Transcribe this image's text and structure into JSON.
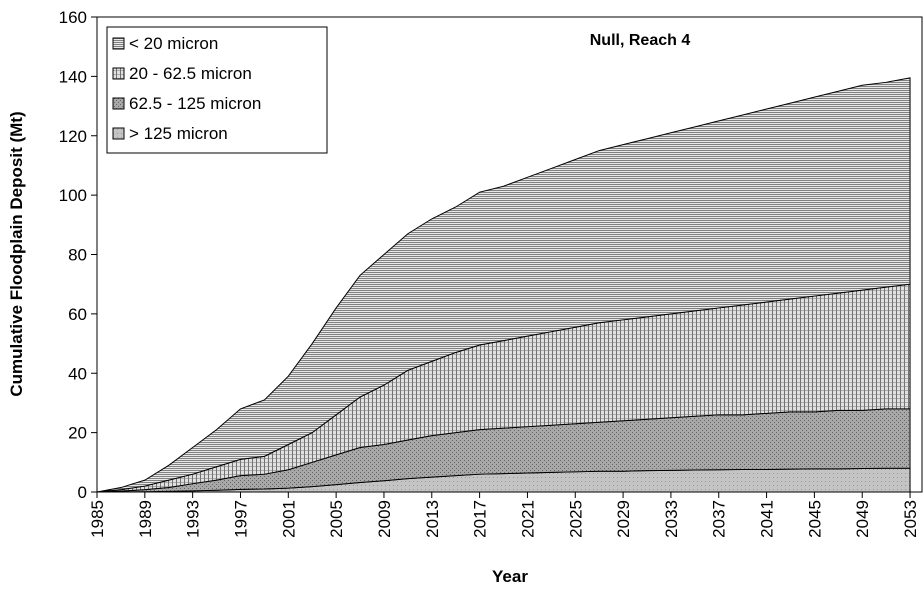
{
  "chart_data": {
    "type": "stacked_area",
    "title": "Null, Reach 4",
    "x_label": "Year",
    "y_label": "Cumulative Floodplain Deposit (Mt)",
    "x": [
      1985,
      1987,
      1989,
      1991,
      1993,
      1995,
      1997,
      1999,
      2001,
      2003,
      2005,
      2007,
      2009,
      2011,
      2013,
      2015,
      2017,
      2019,
      2021,
      2023,
      2025,
      2027,
      2029,
      2031,
      2033,
      2035,
      2037,
      2039,
      2041,
      2043,
      2045,
      2047,
      2049,
      2051,
      2053
    ],
    "series": [
      {
        "name": "< 20 micron",
        "color": "#e8e8e8",
        "values": [
          0,
          0.7,
          2,
          5,
          9,
          12.5,
          17,
          19,
          23,
          30,
          36,
          41,
          44,
          46,
          48,
          49,
          51.5,
          52,
          53.5,
          55,
          56.5,
          58,
          59,
          60,
          61,
          62,
          63,
          64,
          65,
          66,
          67,
          68,
          69,
          69,
          69.5
        ]
      },
      {
        "name": "20 - 62.5 micron",
        "color": "#e0e0e0",
        "values": [
          0,
          0.5,
          1.2,
          2.5,
          3.2,
          4.5,
          5.5,
          6,
          8.5,
          10,
          13.5,
          17,
          20,
          23.5,
          25,
          27,
          28.5,
          29.5,
          30.5,
          31.5,
          32.5,
          33.5,
          34,
          34.5,
          35,
          35.5,
          36,
          37,
          37.5,
          38,
          39,
          39.5,
          40.5,
          41,
          42
        ]
      },
      {
        "name": "62.5 - 125 micron",
        "color": "#a8a8a8",
        "values": [
          0,
          0.3,
          0.7,
          1.3,
          2.4,
          3.4,
          4.6,
          5,
          6.2,
          8.2,
          10,
          11.8,
          12.2,
          13,
          14,
          14.5,
          15,
          15.3,
          15.6,
          15.9,
          16.2,
          16.5,
          17,
          17.3,
          17.7,
          18.1,
          18.5,
          18.4,
          18.9,
          19.3,
          19.2,
          19.7,
          19.6,
          20,
          20
        ]
      },
      {
        "name": "> 125 micron",
        "color": "#c4c4c4",
        "values": [
          0,
          0,
          0.1,
          0.2,
          0.4,
          0.6,
          0.9,
          1,
          1.3,
          1.8,
          2.5,
          3.2,
          3.8,
          4.5,
          5,
          5.5,
          6,
          6.2,
          6.4,
          6.6,
          6.8,
          7,
          7,
          7.2,
          7.3,
          7.4,
          7.5,
          7.6,
          7.6,
          7.7,
          7.8,
          7.8,
          7.9,
          8,
          8
        ]
      }
    ],
    "xlim": [
      1985,
      2054
    ],
    "xticks": [
      1985,
      1989,
      1993,
      1997,
      2001,
      2005,
      2009,
      2013,
      2017,
      2021,
      2025,
      2029,
      2033,
      2037,
      2041,
      2045,
      2049,
      2053
    ],
    "ylim": [
      0,
      160
    ],
    "yticks": [
      0,
      20,
      40,
      60,
      80,
      100,
      120,
      140,
      160
    ],
    "legend": "upper left"
  }
}
